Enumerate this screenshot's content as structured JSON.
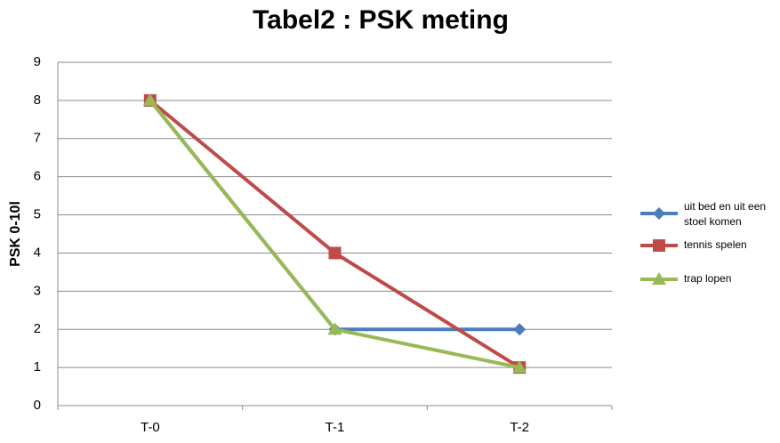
{
  "chart_data": {
    "type": "line",
    "title": "Tabel2 : PSK meting",
    "y_label": "PSK 0-10l",
    "categories": [
      "T-0",
      "T-1",
      "T-2"
    ],
    "series": [
      {
        "name": "uit bed en uit een stoel komen",
        "color": "#4a7ebb",
        "marker": "diamond",
        "values": [
          8,
          2,
          2
        ]
      },
      {
        "name": "tennis spelen",
        "color": "#be4b48",
        "marker": "square",
        "values": [
          8,
          4,
          1
        ]
      },
      {
        "name": "trap lopen",
        "color": "#98b954",
        "marker": "triangle",
        "values": [
          8,
          2,
          1
        ]
      }
    ],
    "ylim": [
      0,
      9
    ],
    "yticks": [
      0,
      1,
      2,
      3,
      4,
      5,
      6,
      7,
      8,
      9
    ],
    "grid": true,
    "legend": "right"
  }
}
